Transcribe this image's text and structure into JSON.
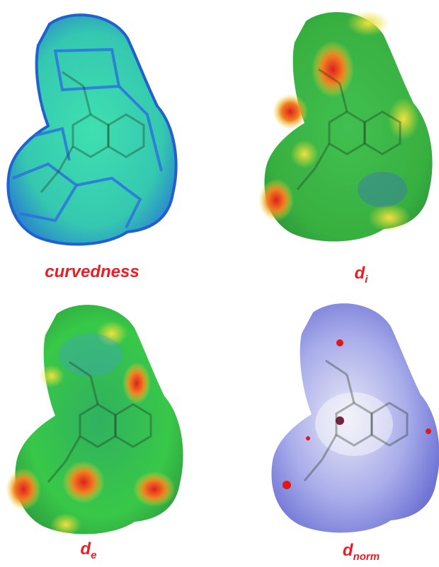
{
  "panels": [
    {
      "label": "curvedness"
    },
    {
      "label": "d",
      "subscript": "i"
    },
    {
      "label": "d",
      "subscript": "e"
    },
    {
      "label": "d",
      "subscript": "norm"
    }
  ]
}
